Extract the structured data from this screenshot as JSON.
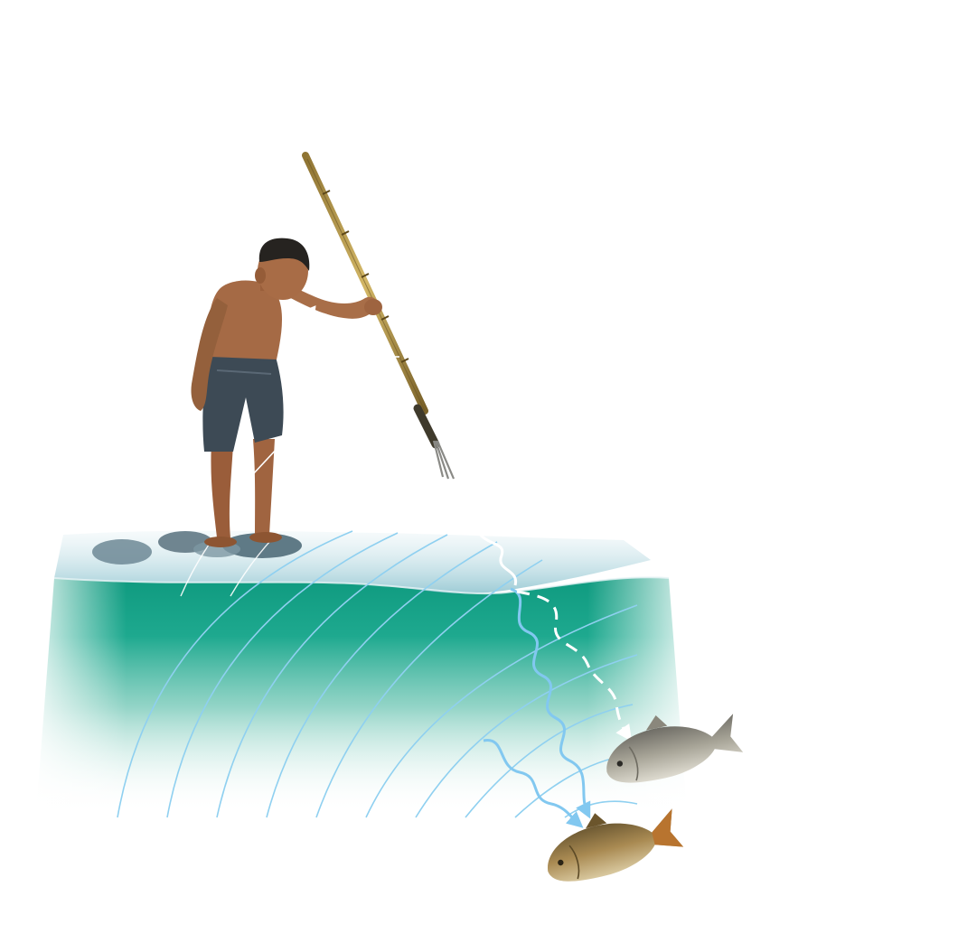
{
  "figure": {
    "subject": "refraction-fishing-illustration",
    "elements": {
      "observer": "boy-with-spear",
      "tool": "bamboo-spear",
      "surface": "water-surface",
      "medium": "water-body",
      "wavefronts": "wavefront-arcs",
      "apparent_path": "apparent-light-path",
      "real_path": "real-light-path",
      "image_fish": "apparent-fish-image",
      "real_fish": "real-fish"
    },
    "colors": {
      "water_deep": "#1aa88b",
      "water_shallow": "#5fc7b4",
      "wavefront": "#8fd0f0",
      "real_ray": "#82c8f0",
      "apparent_ray": "#ffffff",
      "skin": "#a56a45",
      "shorts": "#3d4a55",
      "bamboo": "#b99a4a",
      "fish_gold": "#9a8050",
      "fish_gray": "#9c9a8e"
    }
  }
}
